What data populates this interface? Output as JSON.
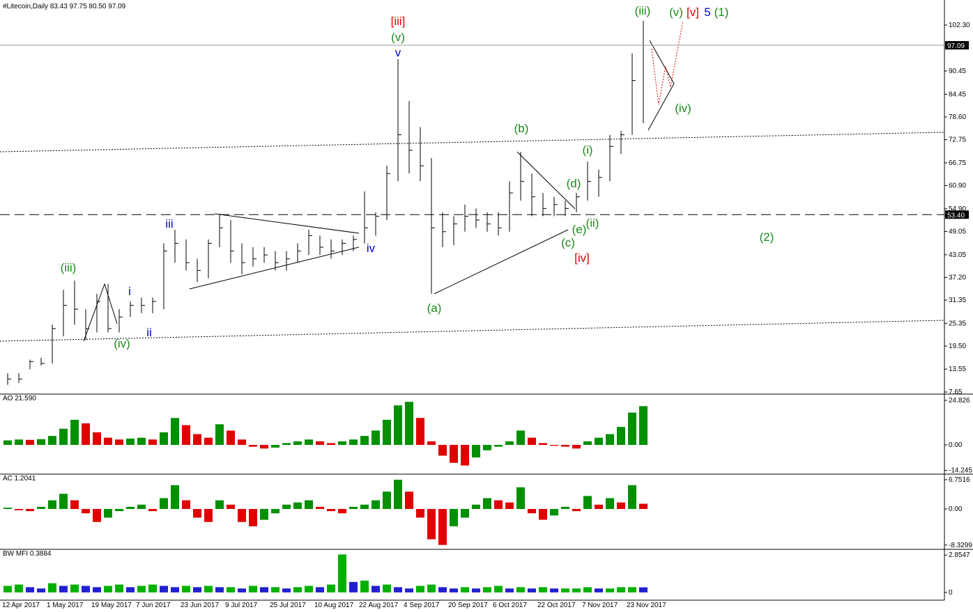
{
  "chart_data": [
    {
      "type": "ohlc",
      "title": "#Litecoin,Daily  83.43 97.75 80.50 97.09",
      "color": "#000000",
      "high": [
        12.5,
        12.5,
        16,
        16.5,
        25,
        34,
        36.4,
        29,
        33,
        35.5,
        29,
        31,
        32,
        32,
        46,
        49.5,
        47,
        42,
        47,
        53.6,
        52,
        46,
        45,
        45,
        44,
        44,
        46,
        49.5,
        48,
        47,
        47,
        48,
        59.4,
        54,
        66,
        93.5,
        82.7,
        76,
        68,
        54,
        53,
        56,
        55,
        54,
        54,
        62,
        69.6,
        64,
        59,
        58,
        57,
        59,
        67.1,
        65,
        74,
        75,
        95,
        103.4
      ],
      "low": [
        9.5,
        10,
        13.5,
        14.5,
        15,
        22,
        25,
        21,
        23,
        23,
        23,
        27,
        28,
        28,
        29,
        41,
        39,
        36,
        37,
        45,
        41,
        38,
        40,
        41,
        39,
        39,
        41,
        43,
        43,
        42,
        43,
        44,
        46,
        48,
        52,
        62,
        64,
        62,
        33,
        45,
        45.5,
        49,
        50,
        49,
        48,
        49,
        57,
        53,
        53,
        53,
        53,
        54,
        57,
        58,
        62,
        69,
        74,
        77
      ],
      "close": [
        11,
        11,
        15.5,
        15,
        24,
        30,
        29,
        24,
        31,
        24,
        27,
        30,
        30,
        31,
        44,
        46,
        41,
        39,
        46,
        50,
        44,
        41,
        42,
        43,
        41,
        42,
        44,
        48,
        45,
        44,
        46,
        47,
        50,
        53,
        64,
        74,
        70,
        66,
        50,
        49,
        51,
        53,
        52,
        51,
        50,
        59,
        62,
        58,
        55,
        56,
        55,
        58,
        62,
        63,
        71,
        74,
        88,
        97.09
      ],
      "ylim": [
        7.29,
        108.05
      ],
      "yticks": [
        {
          "value": 102.3,
          "label": "102.30"
        },
        90.45,
        84.45,
        {
          "value": 78.6,
          "label": "78.60"
        },
        72.75,
        66.75,
        {
          "value": 60.9,
          "label": "60.90"
        },
        {
          "value": 54.9,
          "label": "54.90"
        },
        49.05,
        43.05,
        {
          "value": 37.2,
          "label": "37.20"
        },
        31.35,
        25.35,
        {
          "value": 19.5,
          "label": "19.50"
        },
        13.55,
        7.65
      ],
      "last_price": 97.09,
      "level": {
        "value": 53.4,
        "label": "53.40"
      },
      "annotations": [
        {
          "text": "(iii)",
          "color": "#1a8a1a"
        },
        {
          "text": "(iv)",
          "color": "#1a8a1a"
        },
        {
          "text": "i",
          "color": "#0000cc"
        },
        {
          "text": "ii",
          "color": "#0000cc"
        },
        {
          "text": "iii",
          "color": "#0000cc"
        },
        {
          "text": "iv",
          "color": "#0000cc"
        },
        {
          "text": "[iii]",
          "color": "#e00000"
        },
        {
          "text": "(v)",
          "color": "#1a8a1a"
        },
        {
          "text": "v",
          "color": "#0000cc"
        },
        {
          "text": "(a)",
          "color": "#1a8a1a"
        },
        {
          "text": "(b)",
          "color": "#1a8a1a"
        },
        {
          "text": "(c)",
          "color": "#1a8a1a"
        },
        {
          "text": "(d)",
          "color": "#1a8a1a"
        },
        {
          "text": "(e)",
          "color": "#1a8a1a"
        },
        {
          "text": "[iv]",
          "color": "#e00000"
        },
        {
          "text": "(ii)",
          "color": "#1a8a1a"
        },
        {
          "text": "(i)",
          "color": "#1a8a1a"
        },
        {
          "text": "(iii)",
          "color": "#1a8a1a"
        },
        {
          "text": "(v)",
          "color": "#1a8a1a"
        },
        {
          "text": "[v]",
          "color": "#e00000"
        },
        {
          "text": "5",
          "color": "#0000cc"
        },
        {
          "text": "(1)",
          "color": "#1a8a1a"
        },
        {
          "text": "(iv)",
          "color": "#1a8a1a"
        },
        {
          "text": "(2)",
          "color": "#1a8a1a"
        }
      ]
    },
    {
      "type": "bar",
      "title": "AO 21.590",
      "up_color": "#009000",
      "down_color": "#e00000",
      "values": [
        2.5,
        3,
        2.8,
        3.2,
        5,
        9,
        14,
        12,
        7,
        4,
        3,
        3.5,
        4,
        3,
        7,
        15,
        11,
        6,
        4,
        11.5,
        8,
        3,
        -1,
        -2,
        -1.5,
        1,
        2,
        3,
        2,
        1,
        2,
        3,
        5,
        8,
        14,
        22,
        24,
        15,
        2,
        -6,
        -10,
        -11.5,
        -7,
        -3,
        -1,
        2,
        8,
        4,
        1,
        -0.5,
        -1,
        -2,
        2,
        4,
        6,
        10,
        18,
        21.59
      ],
      "ylim": [
        -15.52,
        27.93
      ],
      "yticks": [
        24.826,
        {
          "value": 0,
          "label": "0.00"
        },
        -14.245
      ]
    },
    {
      "type": "bar",
      "title": "AC 1.2041",
      "up_color": "#009000",
      "down_color": "#e00000",
      "values": [
        0.3,
        -0.3,
        -0.5,
        0.5,
        2,
        3.5,
        2,
        -1,
        -3,
        -2,
        -0.5,
        0.5,
        1,
        -0.5,
        2.5,
        5.5,
        2,
        -2,
        -3,
        2,
        1,
        -3,
        -4,
        -2.5,
        -1,
        1,
        1.5,
        2,
        0.5,
        -0.5,
        -1,
        0.5,
        1,
        2,
        4,
        6.75,
        4,
        -2,
        -7,
        -8.3,
        -4,
        -2,
        1,
        2.5,
        2,
        1.5,
        5,
        -1,
        -2.5,
        -1.5,
        0.5,
        -0.5,
        3,
        1,
        2.5,
        1.5,
        5.5,
        1.2041
      ],
      "ylim": [
        -9.0,
        7.88
      ],
      "yticks": [
        6.7516,
        {
          "value": 0,
          "label": "0.00"
        },
        -8.3299
      ]
    },
    {
      "type": "bar",
      "title": "BW MFI 0.3884",
      "up_color": "#00b000",
      "down_color": "#2020d0",
      "values": [
        0.5,
        0.6,
        0.4,
        0.3,
        0.7,
        0.5,
        0.6,
        0.5,
        0.4,
        0.5,
        0.6,
        0.4,
        0.5,
        0.6,
        0.5,
        0.4,
        0.5,
        0.4,
        0.5,
        0.4,
        0.4,
        0.3,
        0.5,
        0.4,
        0.4,
        0.3,
        0.4,
        0.5,
        0.4,
        0.6,
        2.9,
        0.8,
        0.9,
        0.5,
        0.6,
        0.4,
        0.3,
        0.5,
        0.6,
        0.4,
        0.3,
        0.4,
        0.3,
        0.4,
        0.5,
        0.3,
        0.4,
        0.3,
        0.4,
        0.3,
        0.3,
        0.3,
        0.4,
        0.3,
        0.3,
        0.4,
        0.4,
        0.3884
      ],
      "ylim": [
        -0.38,
        3.24
      ],
      "yticks": [
        2.8547,
        0
      ],
      "categories": [
        "12 Apr 2017",
        null,
        null,
        null,
        "1 May 2017",
        null,
        null,
        null,
        "19 May 2017",
        null,
        null,
        null,
        "7 Jun 2017",
        null,
        null,
        null,
        "23 Jun 2017",
        null,
        null,
        null,
        "9 Jul 2017",
        null,
        null,
        null,
        "25 Jul 2017",
        null,
        null,
        null,
        "10 Aug 2017",
        null,
        null,
        null,
        "22 Aug 2017",
        null,
        null,
        null,
        "4 Sep 2017",
        null,
        null,
        null,
        "20 Sep 2017",
        null,
        null,
        null,
        "6 Oct 2017",
        null,
        null,
        null,
        "22 Oct 2017",
        null,
        null,
        null,
        "7 Nov 2017",
        null,
        null,
        null,
        "23 Nov 2017",
        null
      ]
    }
  ]
}
